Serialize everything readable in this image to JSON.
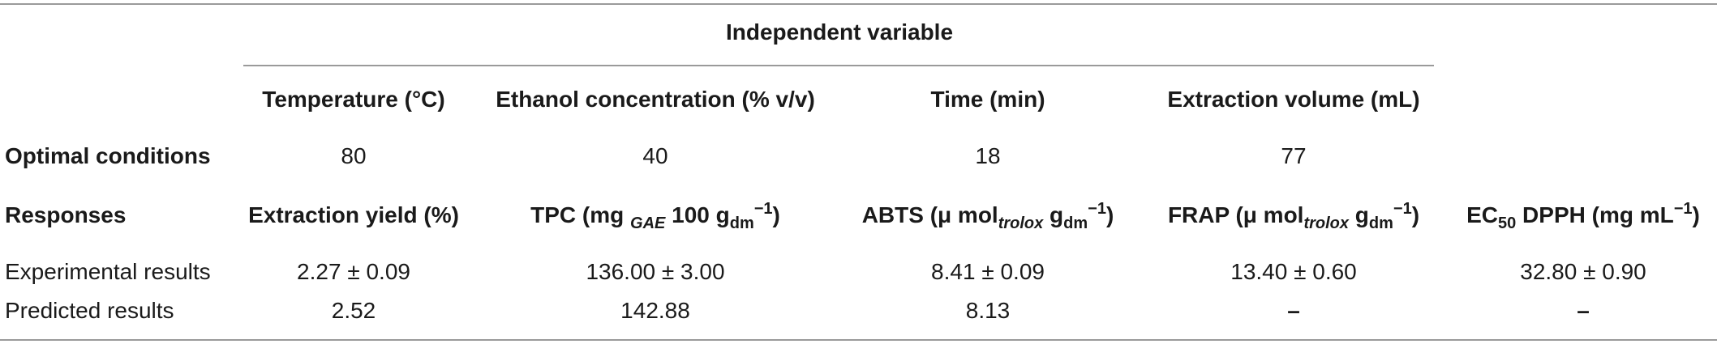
{
  "table": {
    "group_header": "Independent variable",
    "variable_headers": [
      "Temperature (°C)",
      "Ethanol concentration (% v/v)",
      "Time (min)",
      "Extraction volume (mL)"
    ],
    "optimal_row": {
      "label": "Optimal conditions",
      "values": [
        "80",
        "40",
        "18",
        "77"
      ]
    },
    "responses_row": {
      "label": "Responses",
      "extraction_yield": "Extraction yield (%)",
      "tpc": {
        "prefix": "TPC (mg ",
        "sub1": "GAE",
        "mid": " 100 g",
        "sub2": "dm",
        "sup": "−1",
        "suffix": ")"
      },
      "abts": {
        "prefix": "ABTS (μ mol",
        "sub1": "trolox",
        "mid": " g",
        "sub2": "dm",
        "sup": "−1",
        "suffix": ")"
      },
      "frap": {
        "prefix": "FRAP (μ mol",
        "sub1": "trolox",
        "mid": " g",
        "sub2": "dm",
        "sup": "−1",
        "suffix": ")"
      },
      "ec50": {
        "prefix": "EC",
        "sub1": "50",
        "mid": " DPPH (mg mL",
        "sup": "−1",
        "suffix": ")"
      }
    },
    "experimental_row": {
      "label": "Experimental results",
      "values": [
        "2.27 ± 0.09",
        "136.00 ± 3.00",
        "8.41 ± 0.09",
        "13.40 ± 0.60",
        "32.80 ± 0.90"
      ]
    },
    "predicted_row": {
      "label": "Predicted results",
      "values": [
        "2.52",
        "142.88",
        "8.13",
        "–",
        "–"
      ]
    }
  }
}
